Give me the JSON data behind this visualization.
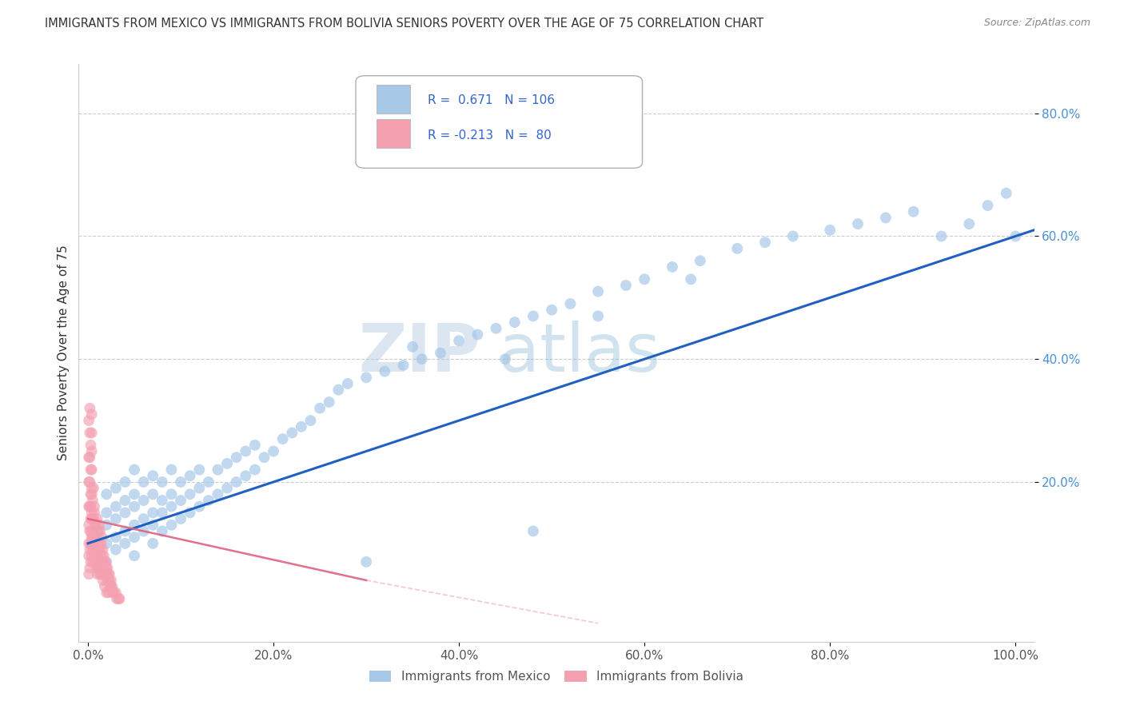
{
  "title": "IMMIGRANTS FROM MEXICO VS IMMIGRANTS FROM BOLIVIA SENIORS POVERTY OVER THE AGE OF 75 CORRELATION CHART",
  "source": "Source: ZipAtlas.com",
  "ylabel": "Seniors Poverty Over the Age of 75",
  "x_ticks": [
    0.0,
    0.2,
    0.4,
    0.6,
    0.8,
    1.0
  ],
  "x_tick_labels": [
    "0.0%",
    "20.0%",
    "40.0%",
    "60.0%",
    "80.0%",
    "100.0%"
  ],
  "y_tick_labels": [
    "20.0%",
    "40.0%",
    "60.0%",
    "80.0%"
  ],
  "y_ticks": [
    0.2,
    0.4,
    0.6,
    0.8
  ],
  "xlim": [
    -0.01,
    1.02
  ],
  "ylim": [
    -0.06,
    0.88
  ],
  "r_mexico": 0.671,
  "n_mexico": 106,
  "r_bolivia": -0.213,
  "n_bolivia": 80,
  "color_mexico": "#a8c8e8",
  "color_bolivia": "#f4a0b0",
  "line_color_mexico": "#2060c0",
  "line_color_bolivia": "#e06080",
  "watermark_zip": "ZIP",
  "watermark_atlas": "atlas",
  "legend_labels": [
    "Immigrants from Mexico",
    "Immigrants from Bolivia"
  ],
  "background_color": "#ffffff",
  "grid_color": "#c0c0c0",
  "title_color": "#333333",
  "source_color": "#888888",
  "ytick_color": "#4a90d9",
  "xtick_color": "#555555",
  "mexico_scatter_x": [
    0.01,
    0.01,
    0.02,
    0.02,
    0.02,
    0.02,
    0.02,
    0.03,
    0.03,
    0.03,
    0.03,
    0.03,
    0.04,
    0.04,
    0.04,
    0.04,
    0.04,
    0.05,
    0.05,
    0.05,
    0.05,
    0.05,
    0.05,
    0.06,
    0.06,
    0.06,
    0.06,
    0.07,
    0.07,
    0.07,
    0.07,
    0.07,
    0.08,
    0.08,
    0.08,
    0.08,
    0.09,
    0.09,
    0.09,
    0.09,
    0.1,
    0.1,
    0.1,
    0.11,
    0.11,
    0.11,
    0.12,
    0.12,
    0.12,
    0.13,
    0.13,
    0.14,
    0.14,
    0.15,
    0.15,
    0.16,
    0.16,
    0.17,
    0.17,
    0.18,
    0.18,
    0.19,
    0.2,
    0.21,
    0.22,
    0.23,
    0.24,
    0.25,
    0.26,
    0.27,
    0.28,
    0.3,
    0.32,
    0.34,
    0.36,
    0.38,
    0.4,
    0.42,
    0.44,
    0.46,
    0.48,
    0.5,
    0.52,
    0.55,
    0.58,
    0.6,
    0.63,
    0.66,
    0.7,
    0.73,
    0.76,
    0.8,
    0.83,
    0.86,
    0.89,
    0.92,
    0.95,
    0.97,
    0.99,
    1.0,
    0.35,
    0.45,
    0.55,
    0.65,
    0.3,
    0.48
  ],
  "mexico_scatter_y": [
    0.08,
    0.12,
    0.07,
    0.1,
    0.13,
    0.15,
    0.18,
    0.09,
    0.11,
    0.14,
    0.16,
    0.19,
    0.1,
    0.12,
    0.15,
    0.17,
    0.2,
    0.08,
    0.11,
    0.13,
    0.16,
    0.18,
    0.22,
    0.12,
    0.14,
    0.17,
    0.2,
    0.1,
    0.13,
    0.15,
    0.18,
    0.21,
    0.12,
    0.15,
    0.17,
    0.2,
    0.13,
    0.16,
    0.18,
    0.22,
    0.14,
    0.17,
    0.2,
    0.15,
    0.18,
    0.21,
    0.16,
    0.19,
    0.22,
    0.17,
    0.2,
    0.18,
    0.22,
    0.19,
    0.23,
    0.2,
    0.24,
    0.21,
    0.25,
    0.22,
    0.26,
    0.24,
    0.25,
    0.27,
    0.28,
    0.29,
    0.3,
    0.32,
    0.33,
    0.35,
    0.36,
    0.37,
    0.38,
    0.39,
    0.4,
    0.41,
    0.43,
    0.44,
    0.45,
    0.46,
    0.47,
    0.48,
    0.49,
    0.51,
    0.52,
    0.53,
    0.55,
    0.56,
    0.58,
    0.59,
    0.6,
    0.61,
    0.62,
    0.63,
    0.64,
    0.6,
    0.62,
    0.65,
    0.67,
    0.6,
    0.42,
    0.4,
    0.47,
    0.53,
    0.07,
    0.12
  ],
  "bolivia_scatter_x": [
    0.005,
    0.005,
    0.005,
    0.005,
    0.007,
    0.007,
    0.007,
    0.008,
    0.008,
    0.008,
    0.009,
    0.009,
    0.01,
    0.01,
    0.01,
    0.01,
    0.011,
    0.011,
    0.011,
    0.012,
    0.012,
    0.012,
    0.013,
    0.013,
    0.013,
    0.014,
    0.014,
    0.015,
    0.015,
    0.015,
    0.016,
    0.016,
    0.017,
    0.017,
    0.018,
    0.018,
    0.019,
    0.019,
    0.02,
    0.02,
    0.021,
    0.021,
    0.022,
    0.022,
    0.023,
    0.023,
    0.024,
    0.025,
    0.025,
    0.026,
    0.027,
    0.028,
    0.03,
    0.031,
    0.033,
    0.034,
    0.003,
    0.003,
    0.004,
    0.004,
    0.004,
    0.005,
    0.005,
    0.006,
    0.006,
    0.006,
    0.007,
    0.007,
    0.008,
    0.008,
    0.009,
    0.01,
    0.011,
    0.012,
    0.013,
    0.014,
    0.016,
    0.018,
    0.02,
    0.022
  ],
  "bolivia_scatter_y": [
    0.07,
    0.09,
    0.11,
    0.14,
    0.08,
    0.11,
    0.15,
    0.07,
    0.1,
    0.13,
    0.06,
    0.09,
    0.05,
    0.08,
    0.11,
    0.14,
    0.06,
    0.09,
    0.12,
    0.07,
    0.1,
    0.13,
    0.06,
    0.09,
    0.12,
    0.07,
    0.1,
    0.06,
    0.08,
    0.11,
    0.07,
    0.09,
    0.06,
    0.08,
    0.05,
    0.07,
    0.05,
    0.07,
    0.05,
    0.06,
    0.04,
    0.06,
    0.04,
    0.05,
    0.04,
    0.05,
    0.03,
    0.03,
    0.04,
    0.03,
    0.02,
    0.02,
    0.02,
    0.01,
    0.01,
    0.01,
    0.12,
    0.16,
    0.1,
    0.14,
    0.18,
    0.12,
    0.17,
    0.1,
    0.14,
    0.19,
    0.11,
    0.16,
    0.09,
    0.13,
    0.08,
    0.07,
    0.06,
    0.06,
    0.05,
    0.05,
    0.04,
    0.03,
    0.02,
    0.02
  ],
  "bolivia_extra_x": [
    0.001,
    0.001,
    0.001,
    0.001,
    0.001,
    0.001,
    0.001,
    0.001,
    0.002,
    0.002,
    0.002,
    0.002,
    0.002,
    0.002,
    0.002,
    0.002,
    0.003,
    0.003,
    0.003,
    0.003,
    0.003,
    0.003,
    0.004,
    0.004,
    0.004,
    0.004,
    0.004,
    0.004,
    0.004,
    0.004
  ],
  "bolivia_extra_y": [
    0.05,
    0.08,
    0.1,
    0.13,
    0.16,
    0.2,
    0.24,
    0.3,
    0.06,
    0.09,
    0.12,
    0.16,
    0.2,
    0.24,
    0.28,
    0.32,
    0.07,
    0.1,
    0.14,
    0.18,
    0.22,
    0.26,
    0.08,
    0.11,
    0.15,
    0.19,
    0.22,
    0.25,
    0.28,
    0.31
  ]
}
